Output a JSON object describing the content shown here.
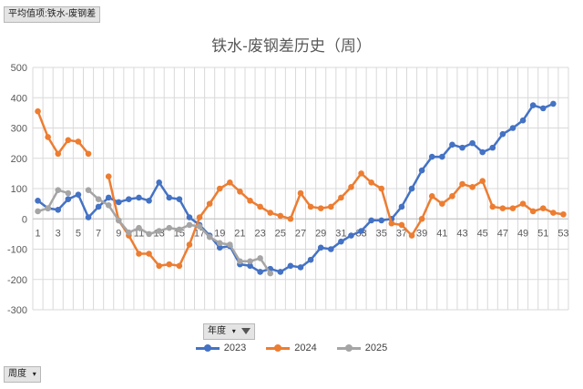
{
  "pivot": {
    "value_field": "平均值项:铁水-废钢差",
    "legend_field": "年度",
    "axis_field": "周度"
  },
  "chart_data": {
    "type": "line",
    "title": "铁水-废钢差历史（周）",
    "xlabel": "",
    "ylabel": "",
    "ylim": [
      -300,
      500
    ],
    "yticks": [
      -300,
      -200,
      -100,
      0,
      100,
      200,
      300,
      400,
      500
    ],
    "x": [
      1,
      2,
      3,
      4,
      5,
      6,
      7,
      8,
      9,
      10,
      11,
      12,
      13,
      14,
      15,
      16,
      17,
      18,
      19,
      20,
      21,
      22,
      23,
      24,
      25,
      26,
      27,
      28,
      29,
      30,
      31,
      32,
      33,
      34,
      35,
      36,
      37,
      38,
      39,
      40,
      41,
      42,
      43,
      44,
      45,
      46,
      47,
      48,
      49,
      50,
      51,
      52,
      53
    ],
    "xtick_labels": [
      1,
      3,
      5,
      7,
      9,
      11,
      13,
      15,
      17,
      19,
      21,
      23,
      25,
      27,
      29,
      31,
      33,
      35,
      37,
      39,
      41,
      43,
      45,
      47,
      49,
      51,
      53
    ],
    "grid": true,
    "legend_position": "bottom",
    "series": [
      {
        "name": "2023",
        "color": "#4472c4",
        "values": [
          60,
          35,
          30,
          65,
          80,
          5,
          40,
          70,
          55,
          65,
          70,
          60,
          120,
          70,
          65,
          5,
          -20,
          -55,
          -95,
          -90,
          -150,
          -155,
          -175,
          -165,
          -175,
          -155,
          -160,
          -135,
          -95,
          -100,
          -75,
          -55,
          -40,
          -5,
          -5,
          0,
          40,
          100,
          160,
          205,
          205,
          245,
          235,
          250,
          220,
          235,
          280,
          300,
          325,
          375,
          365,
          380,
          null
        ]
      },
      {
        "name": "2024",
        "color": "#ed7d31",
        "values": [
          355,
          270,
          215,
          260,
          255,
          215,
          null,
          140,
          -5,
          -55,
          -115,
          -115,
          -155,
          -150,
          -155,
          -85,
          5,
          50,
          100,
          120,
          90,
          60,
          40,
          20,
          10,
          0,
          85,
          40,
          35,
          40,
          70,
          105,
          150,
          120,
          100,
          -15,
          -20,
          -55,
          0,
          75,
          50,
          75,
          115,
          105,
          125,
          40,
          35,
          35,
          50,
          25,
          35,
          20,
          15
        ]
      },
      {
        "name": "2025",
        "color": "#a5a5a5",
        "values": [
          25,
          35,
          95,
          85,
          null,
          95,
          65,
          45,
          -5,
          -45,
          -30,
          -50,
          -40,
          -30,
          -35,
          -20,
          -25,
          -60,
          -80,
          -85,
          -140,
          -140,
          -130,
          -180,
          null,
          null,
          null,
          null,
          null,
          null,
          null,
          null,
          null,
          null,
          null,
          null,
          null,
          null,
          null,
          null,
          null,
          null,
          null,
          null,
          null,
          null,
          null,
          null,
          null,
          null,
          null,
          null,
          null
        ]
      }
    ]
  }
}
